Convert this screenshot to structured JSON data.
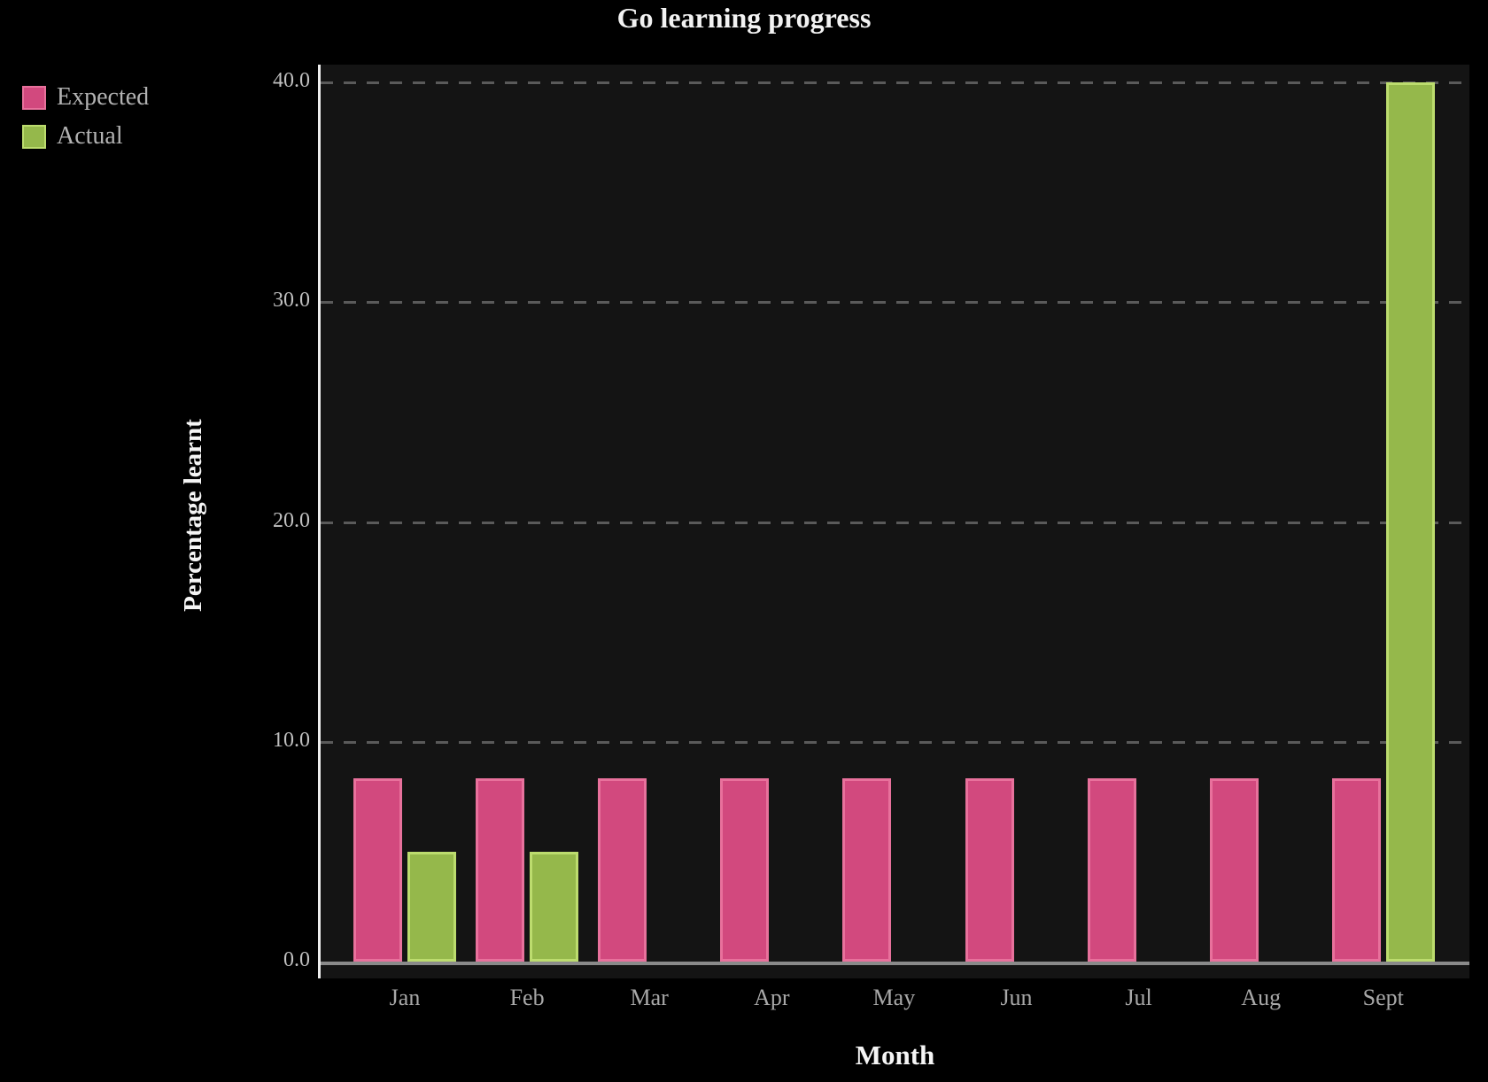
{
  "title": "Go learning progress",
  "legend": {
    "items": [
      {
        "label": "Expected",
        "color": "#d2497e",
        "border": "#e8719c"
      },
      {
        "label": "Actual",
        "color": "#95b84b",
        "border": "#bcdc6e"
      }
    ]
  },
  "chart_data": {
    "type": "bar",
    "title": "Go learning progress",
    "xlabel": "Month",
    "ylabel": "Percentage learnt",
    "categories": [
      "Jan",
      "Feb",
      "Mar",
      "Apr",
      "May",
      "Jun",
      "Jul",
      "Aug",
      "Sept"
    ],
    "series": [
      {
        "name": "Expected",
        "color": "#d2497e",
        "border_color": "#e8719c",
        "values": [
          8.33,
          8.33,
          8.33,
          8.33,
          8.33,
          8.33,
          8.33,
          8.33,
          8.33
        ]
      },
      {
        "name": "Actual",
        "color": "#95b84b",
        "border_color": "#bcdc6e",
        "values": [
          5,
          5,
          0,
          0,
          0,
          0,
          0,
          0,
          40
        ]
      }
    ],
    "ylim": [
      0,
      40.8
    ],
    "yticks": [
      "0.0",
      "10.0",
      "20.0",
      "30.0",
      "40.0"
    ],
    "ytick_values": [
      0,
      10,
      20,
      30,
      40
    ],
    "grid": "horizontal dashed",
    "legend_position": "top-left outside plot",
    "plot_background": "#141414",
    "page_background": "#000000"
  }
}
